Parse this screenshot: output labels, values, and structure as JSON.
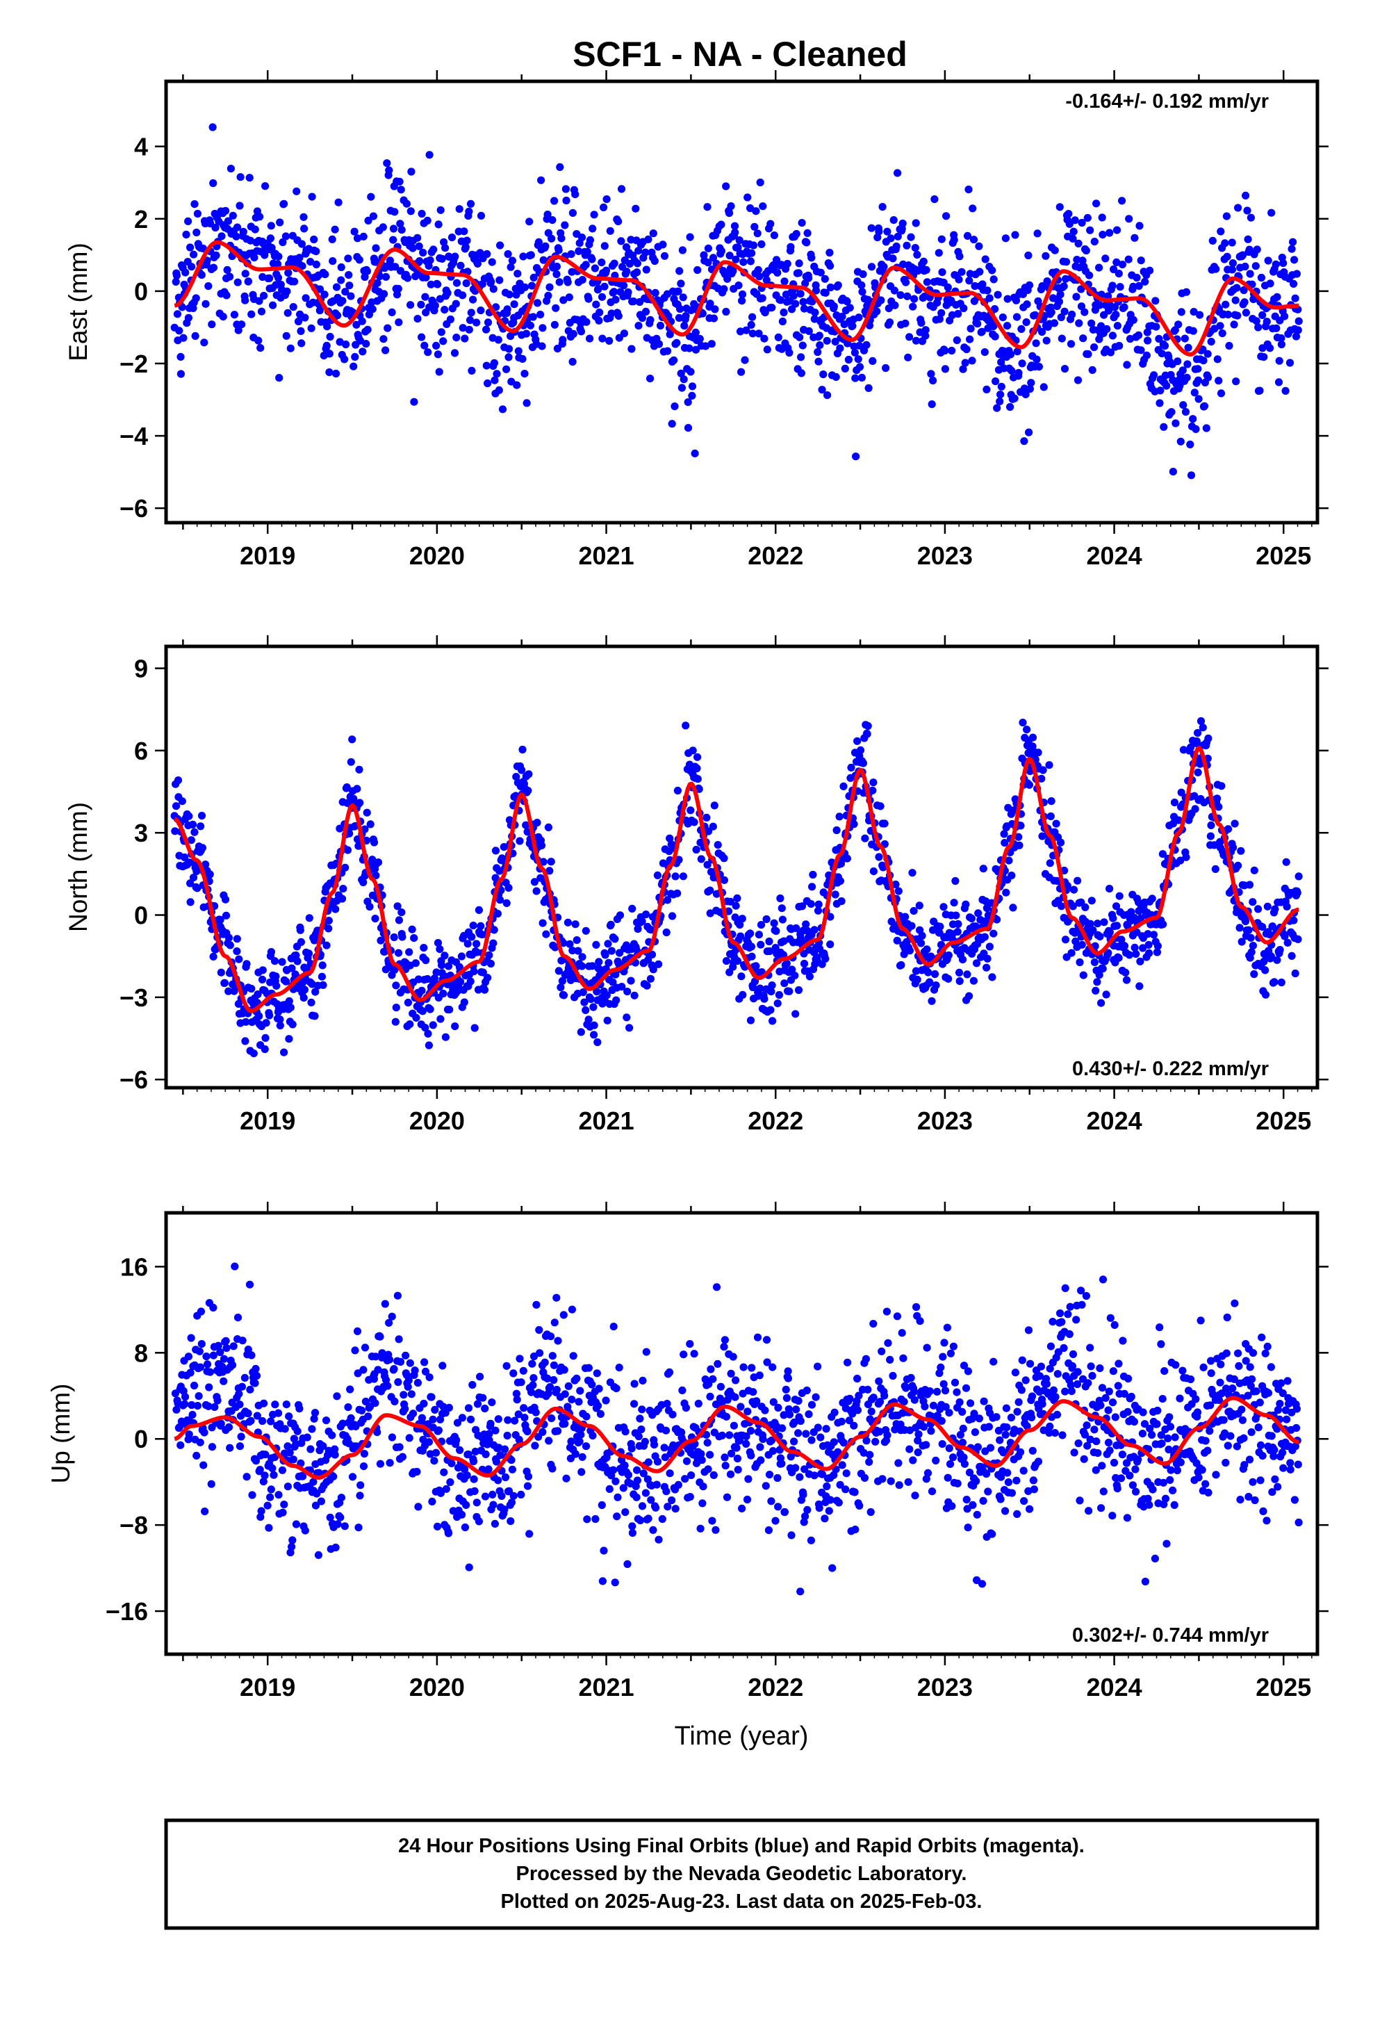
{
  "title": "SCF1  - NA - Cleaned",
  "colors": {
    "points": "#0000ff",
    "fit": "#ff0000",
    "frame": "#000000"
  },
  "chart_data": [
    {
      "type": "scatter",
      "ylabel": "East (mm)",
      "ylim": [
        -6.4,
        5.8
      ],
      "yticks": [
        -6,
        -4,
        -2,
        0,
        2,
        4
      ],
      "xlim": [
        2018.4,
        2025.2
      ],
      "xticks": [
        2019,
        2020,
        2021,
        2022,
        2023,
        2024,
        2025
      ],
      "rate_label": "-0.164+/- 0.192 mm/yr",
      "rate_position": "top-right",
      "series": [
        {
          "kind": "daily_positions",
          "x_start": 2018.45,
          "x_end": 2025.09,
          "trend": -0.164,
          "offset": 0.4,
          "scatter_sd": 1.1,
          "seasonal": {
            "annual_amp": 1.0,
            "annual_phase": 2018.62,
            "semiannual_amp": 0.3
          }
        },
        {
          "kind": "fit_curve",
          "x": [
            2018.45,
            2018.7,
            2018.95,
            2019.15,
            2019.45,
            2019.75,
            2019.95,
            2020.15,
            2020.45,
            2020.7,
            2020.95,
            2021.15,
            2021.45,
            2021.7,
            2021.95,
            2022.15,
            2022.45,
            2022.7,
            2022.95,
            2023.15,
            2023.45,
            2023.7,
            2023.95,
            2024.15,
            2024.45,
            2024.7,
            2024.95,
            2025.09
          ],
          "y": [
            -0.4,
            1.35,
            0.6,
            0.65,
            -0.95,
            1.15,
            0.5,
            0.45,
            -1.1,
            0.95,
            0.35,
            0.3,
            -1.2,
            0.8,
            0.15,
            0.1,
            -1.35,
            0.65,
            -0.1,
            -0.05,
            -1.55,
            0.55,
            -0.25,
            -0.2,
            -1.75,
            0.35,
            -0.45,
            -0.4
          ]
        }
      ]
    },
    {
      "type": "scatter",
      "ylabel": "North (mm)",
      "ylim": [
        -6.3,
        9.8
      ],
      "yticks": [
        -6,
        -3,
        0,
        3,
        6,
        9
      ],
      "xlim": [
        2018.4,
        2025.2
      ],
      "xticks": [
        2019,
        2020,
        2021,
        2022,
        2023,
        2024,
        2025
      ],
      "rate_label": "0.430+/- 0.222 mm/yr",
      "rate_position": "bottom-right",
      "series": [
        {
          "kind": "daily_positions",
          "x_start": 2018.45,
          "x_end": 2025.09,
          "trend": 0.43,
          "offset": 0.0,
          "scatter_sd": 0.9
        },
        {
          "kind": "fit_curve",
          "x": [
            2018.45,
            2018.58,
            2018.75,
            2018.9,
            2019.05,
            2019.25,
            2019.38,
            2019.5,
            2019.62,
            2019.75,
            2019.9,
            2020.05,
            2020.25,
            2020.38,
            2020.5,
            2020.62,
            2020.75,
            2020.9,
            2021.05,
            2021.25,
            2021.38,
            2021.5,
            2021.62,
            2021.75,
            2021.9,
            2022.05,
            2022.25,
            2022.38,
            2022.5,
            2022.62,
            2022.75,
            2022.9,
            2023.05,
            2023.25,
            2023.38,
            2023.5,
            2023.62,
            2023.75,
            2023.9,
            2024.05,
            2024.25,
            2024.38,
            2024.5,
            2024.62,
            2024.75,
            2024.9,
            2025.09
          ],
          "y": [
            3.5,
            2.0,
            -1.5,
            -3.5,
            -2.9,
            -2.1,
            0.8,
            4.0,
            1.3,
            -1.8,
            -3.1,
            -2.4,
            -1.7,
            1.3,
            4.4,
            1.7,
            -1.5,
            -2.7,
            -2.0,
            -1.3,
            1.8,
            4.8,
            2.1,
            -1.0,
            -2.3,
            -1.6,
            -0.9,
            2.2,
            5.3,
            2.5,
            -0.5,
            -1.8,
            -1.0,
            -0.5,
            2.5,
            5.7,
            2.9,
            -0.1,
            -1.4,
            -0.6,
            -0.1,
            3.0,
            6.1,
            3.3,
            0.3,
            -1.0,
            0.2
          ]
        }
      ]
    },
    {
      "type": "scatter",
      "ylabel": "Up (mm)",
      "ylim": [
        -20,
        21
      ],
      "yticks": [
        -16,
        -8,
        0,
        8,
        16
      ],
      "xlim": [
        2018.4,
        2025.2
      ],
      "xticks": [
        2019,
        2020,
        2021,
        2022,
        2023,
        2024,
        2025
      ],
      "xlabel": "Time (year)",
      "rate_label": "0.302+/- 0.744 mm/yr",
      "rate_position": "bottom-right",
      "series": [
        {
          "kind": "daily_positions",
          "x_start": 2018.45,
          "x_end": 2025.09,
          "trend": 0.302,
          "offset": 0.0,
          "scatter_sd": 4.0,
          "seasonal": {
            "annual_amp": 2.5,
            "annual_phase": 2018.75,
            "semiannual_amp": 0.0
          },
          "bumps": [
            {
              "x0": 2018.45,
              "x1": 2019.0,
              "dy": 3.5
            },
            {
              "x0": 2019.45,
              "x1": 2019.9,
              "dy": 3.5
            },
            {
              "x0": 2020.5,
              "x1": 2020.8,
              "dy": 3.0
            },
            {
              "x0": 2023.55,
              "x1": 2023.9,
              "dy": 3.5
            }
          ]
        },
        {
          "kind": "fit_curve",
          "x": [
            2018.45,
            2018.55,
            2018.75,
            2018.95,
            2019.15,
            2019.3,
            2019.5,
            2019.7,
            2019.9,
            2020.1,
            2020.3,
            2020.5,
            2020.7,
            2020.9,
            2021.1,
            2021.3,
            2021.5,
            2021.7,
            2021.9,
            2022.1,
            2022.3,
            2022.5,
            2022.7,
            2022.9,
            2023.1,
            2023.3,
            2023.5,
            2023.7,
            2023.9,
            2024.1,
            2024.3,
            2024.5,
            2024.7,
            2024.9,
            2025.09
          ],
          "y": [
            0.0,
            1.2,
            2.0,
            0.2,
            -2.5,
            -3.6,
            -1.5,
            2.2,
            1.2,
            -1.8,
            -3.4,
            -0.5,
            2.8,
            1.2,
            -1.6,
            -3.0,
            -0.2,
            3.0,
            1.5,
            -1.2,
            -2.8,
            0.2,
            3.2,
            1.8,
            -0.8,
            -2.5,
            0.8,
            3.5,
            2.0,
            -0.6,
            -2.3,
            1.0,
            3.8,
            2.2,
            -0.3
          ]
        }
      ]
    }
  ],
  "caption": {
    "lines": [
      "24 Hour Positions Using Final Orbits (blue) and Rapid Orbits (magenta).",
      "Processed by the Nevada Geodetic Laboratory.",
      "Plotted on 2025-Aug-23. Last data on 2025-Feb-03."
    ]
  }
}
